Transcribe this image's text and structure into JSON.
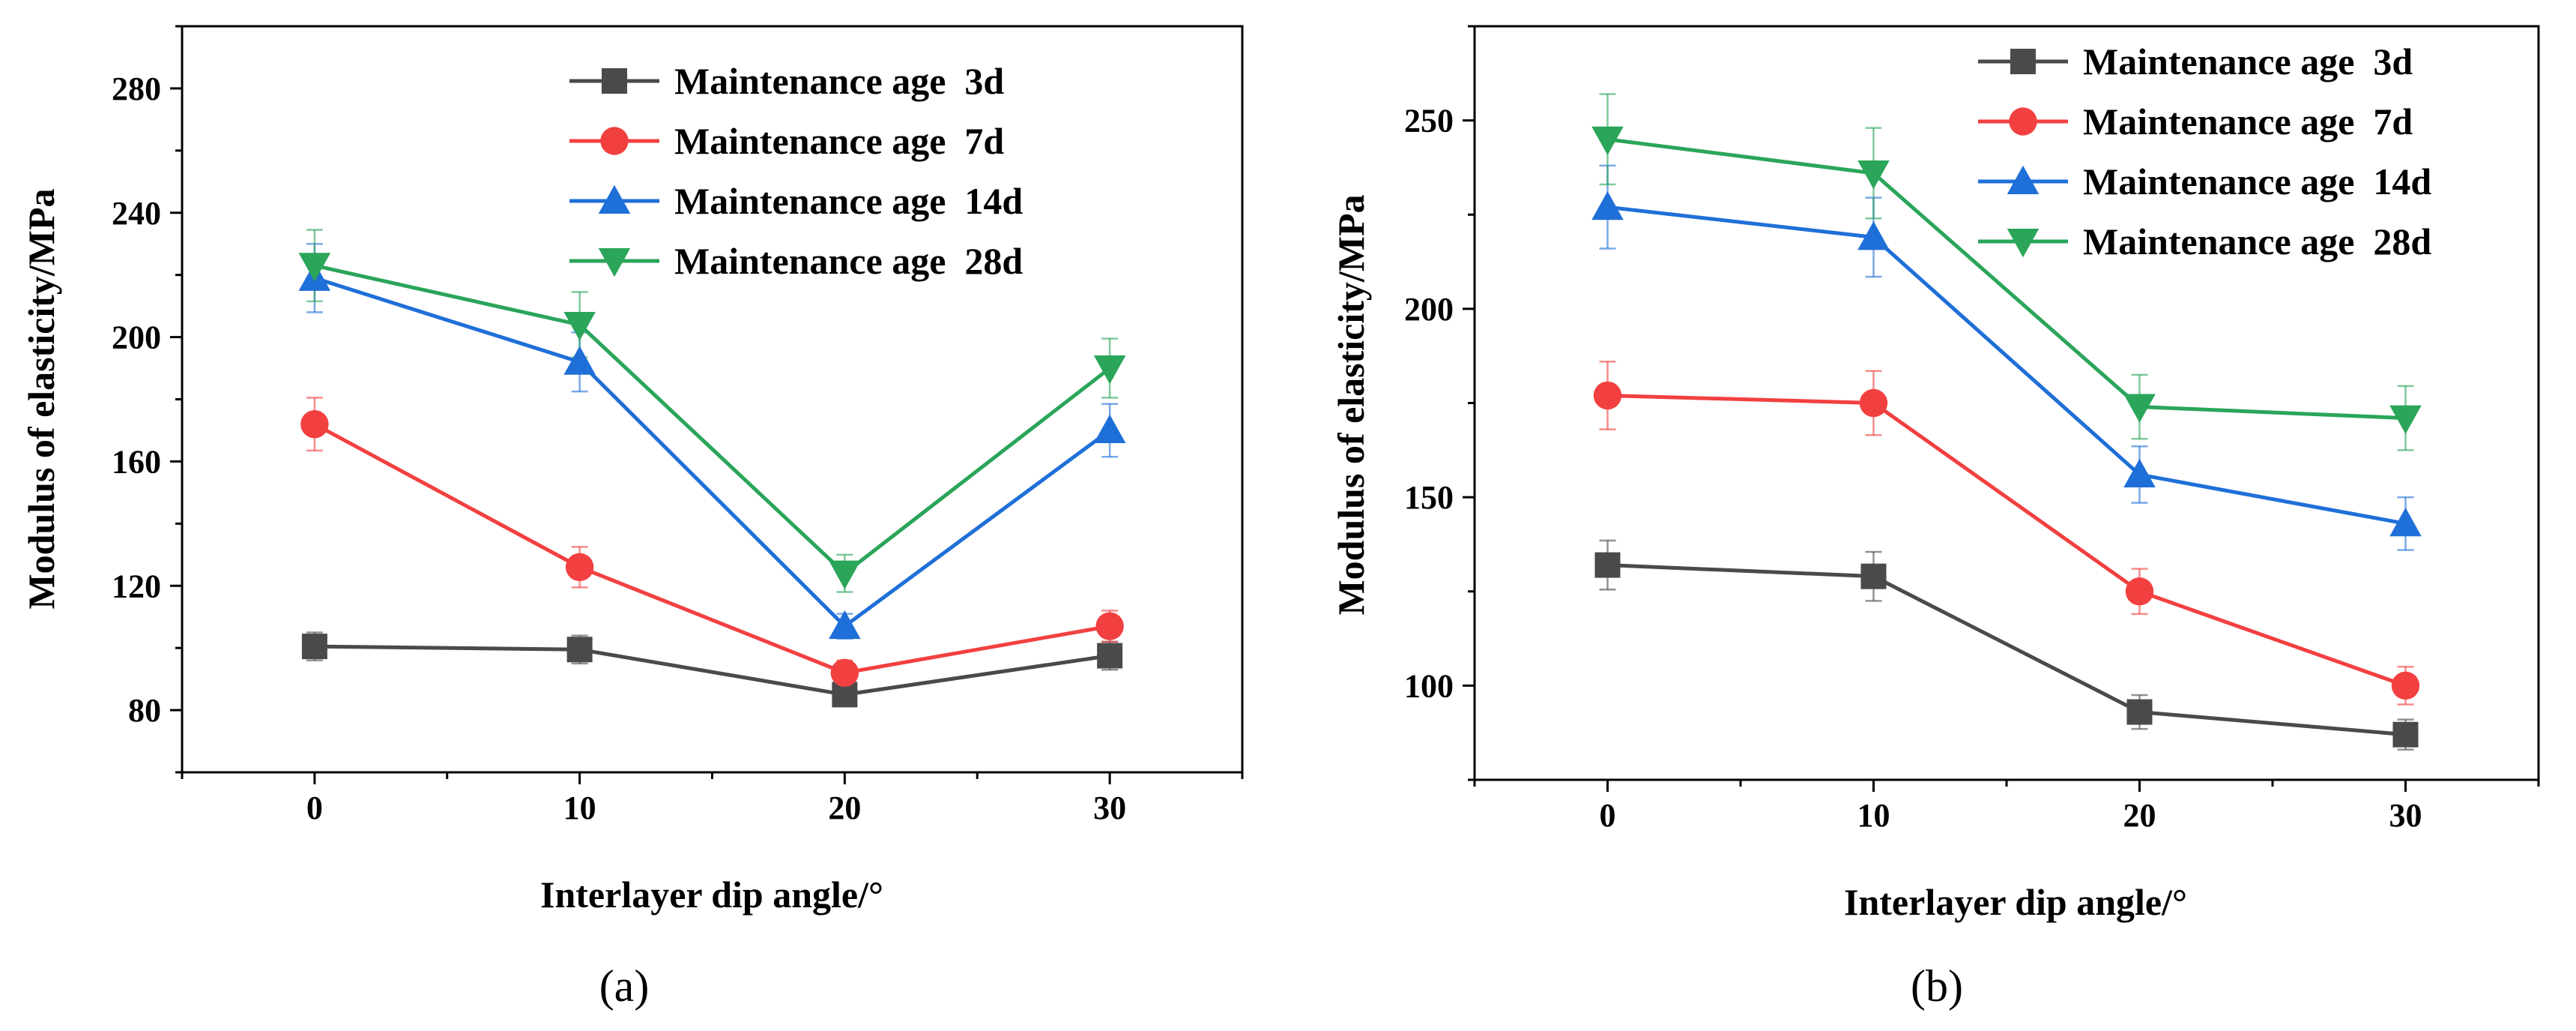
{
  "charts": [
    {
      "panel_label": "(a)",
      "xlabel": "Interlayer dip angle/°",
      "ylabel": "Modulus of elasticity/MPa"
    },
    {
      "panel_label": "(b)",
      "xlabel": "Interlayer dip angle/°",
      "ylabel": "Modulus of elasticity/MPa"
    }
  ],
  "chart_data": [
    {
      "type": "line",
      "panel": "(a)",
      "title": "",
      "xlabel": "Interlayer dip angle/°",
      "ylabel": "Modulus of elasticity/MPa",
      "x": [
        0,
        10,
        20,
        30
      ],
      "xlim": [
        -5,
        35
      ],
      "ylim": [
        60,
        300
      ],
      "xticks": [
        0,
        10,
        20,
        30
      ],
      "yticks": [
        80,
        120,
        160,
        200,
        240,
        280
      ],
      "legend_position": "top-right",
      "grid": false,
      "series": [
        {
          "name": "Maintenance age  3d",
          "marker": "square",
          "color": "#4a4a4a",
          "values": [
            100.5,
            99.5,
            85,
            97.5
          ],
          "errors": [
            4.5,
            4.5,
            3.5,
            4.5
          ]
        },
        {
          "name": "Maintenance age  7d",
          "marker": "circle",
          "color": "#f24040",
          "values": [
            172,
            126,
            92,
            107
          ],
          "errors": [
            8.5,
            6.5,
            4.0,
            5.0
          ]
        },
        {
          "name": "Maintenance age  14d",
          "marker": "triangle-up",
          "color": "#1f6fd8",
          "values": [
            219,
            192,
            107,
            170
          ],
          "errors": [
            11,
            9.5,
            4.0,
            8.5
          ]
        },
        {
          "name": "Maintenance age  28d",
          "marker": "triangle-down",
          "color": "#2aa55a",
          "values": [
            223,
            204,
            124,
            190
          ],
          "errors": [
            11.5,
            10.5,
            6.0,
            9.5
          ]
        }
      ]
    },
    {
      "type": "line",
      "panel": "(b)",
      "title": "",
      "xlabel": "Interlayer dip angle/°",
      "ylabel": "Modulus of elasticity/MPa",
      "x": [
        0,
        10,
        20,
        30
      ],
      "xlim": [
        -5,
        35
      ],
      "ylim": [
        75,
        275
      ],
      "xticks": [
        0,
        10,
        20,
        30
      ],
      "yticks": [
        100,
        150,
        200,
        250
      ],
      "legend_position": "top-right",
      "grid": false,
      "series": [
        {
          "name": "Maintenance age  3d",
          "marker": "square",
          "color": "#4a4a4a",
          "values": [
            132,
            129,
            93,
            87
          ],
          "errors": [
            6.5,
            6.5,
            4.5,
            4.0
          ]
        },
        {
          "name": "Maintenance age  7d",
          "marker": "circle",
          "color": "#f24040",
          "values": [
            177,
            175,
            125,
            100
          ],
          "errors": [
            9.0,
            8.5,
            6.0,
            5.0
          ]
        },
        {
          "name": "Maintenance age  14d",
          "marker": "triangle-up",
          "color": "#1f6fd8",
          "values": [
            227,
            219,
            156,
            143
          ],
          "errors": [
            11,
            10.5,
            7.5,
            7.0
          ]
        },
        {
          "name": "Maintenance age  28d",
          "marker": "triangle-down",
          "color": "#2aa55a",
          "values": [
            245,
            236,
            174,
            171
          ],
          "errors": [
            12,
            12,
            8.5,
            8.5
          ]
        }
      ]
    }
  ]
}
